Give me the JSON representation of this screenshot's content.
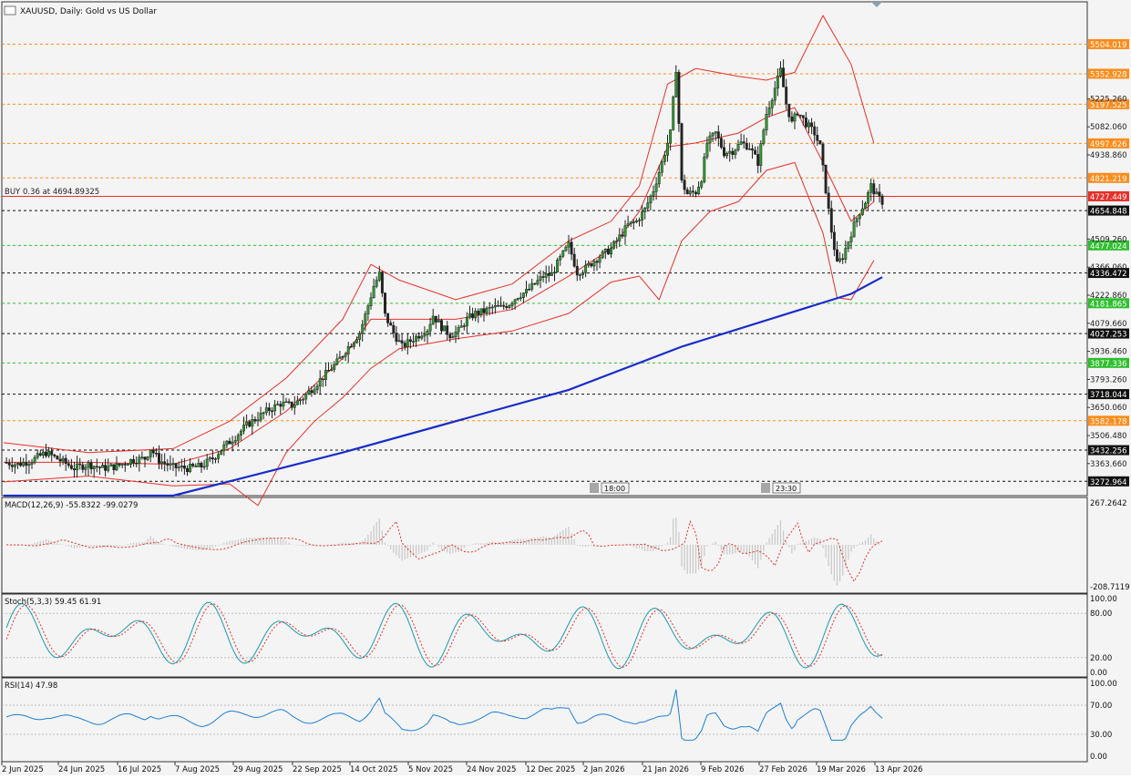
{
  "chart_data": [
    {
      "type": "candlestick",
      "title": "XAUUSD, Daily:  Gold vs US Dollar",
      "position_label": "BUY 0.36 at 4694.89325",
      "ylim": [
        3200,
        5720
      ],
      "y_ticks": [
        "3363.660",
        "3506.480",
        "3650.060",
        "3793.260",
        "3936.460",
        "4079.660",
        "4222.860",
        "4366.060",
        "4509.260",
        "4938.860",
        "5082.060",
        "5225.260"
      ],
      "grid": false,
      "x_ticks": [
        "2 Jun 2025",
        "24 Jun 2025",
        "16 Jul 2025",
        "7 Aug 2025",
        "29 Aug 2025",
        "22 Sep 2025",
        "14 Oct 2025",
        "5 Nov 2025",
        "24 Nov 2025",
        "12 Dec 2025",
        "2 Jan 2026",
        "21 Jan 2026",
        "9 Feb 2026",
        "27 Feb 2026",
        "19 Mar 2026",
        "13 Apr 2026"
      ],
      "price_lines": [
        {
          "value": 5504.019,
          "label": "5504.019",
          "color": "#ff8c1a",
          "style": "dash"
        },
        {
          "value": 5352.928,
          "label": "5352.928",
          "color": "#ff8c1a",
          "style": "dash"
        },
        {
          "value": 5197.525,
          "label": "5197.525",
          "color": "#ff8c1a",
          "style": "dash"
        },
        {
          "value": 4997.626,
          "label": "4997.626",
          "color": "#ff8c1a",
          "style": "dash"
        },
        {
          "value": 4821.219,
          "label": "4821.219",
          "color": "#ff8c1a",
          "style": "dash"
        },
        {
          "value": 4727.449,
          "label": "4727.449",
          "color": "#e8302a",
          "style": "solid"
        },
        {
          "value": 4654.848,
          "label": "4654.848",
          "color": "#111111",
          "style": "dash"
        },
        {
          "value": 4477.024,
          "label": "4477.024",
          "color": "#2fbf2f",
          "style": "dash"
        },
        {
          "value": 4336.472,
          "label": "4336.472",
          "color": "#111111",
          "style": "dash"
        },
        {
          "value": 4181.865,
          "label": "4181.865",
          "color": "#2fbf2f",
          "style": "dash"
        },
        {
          "value": 4027.253,
          "label": "4027.253",
          "color": "#111111",
          "style": "dash"
        },
        {
          "value": 3877.336,
          "label": "3877.336",
          "color": "#2fbf2f",
          "style": "dash"
        },
        {
          "value": 3718.044,
          "label": "3718.044",
          "color": "#111111",
          "style": "dash"
        },
        {
          "value": 3582.178,
          "label": "3582.178",
          "color": "#ff8c1a",
          "style": "dash"
        },
        {
          "value": 3432.256,
          "label": "3432.256",
          "color": "#111111",
          "style": "dash"
        },
        {
          "value": 3272.964,
          "label": "3272.964",
          "color": "#111111",
          "style": "dash"
        }
      ],
      "time_markers": [
        "18:00",
        "23:30"
      ],
      "close_path": [
        [
          0,
          3370
        ],
        [
          5,
          3360
        ],
        [
          10,
          3380
        ],
        [
          15,
          3420
        ],
        [
          20,
          3380
        ],
        [
          25,
          3340
        ],
        [
          30,
          3360
        ],
        [
          35,
          3340
        ],
        [
          40,
          3350
        ],
        [
          45,
          3380
        ],
        [
          50,
          3390
        ],
        [
          52,
          3440
        ],
        [
          55,
          3380
        ],
        [
          60,
          3345
        ],
        [
          65,
          3340
        ],
        [
          70,
          3350
        ],
        [
          74,
          3390
        ],
        [
          78,
          3450
        ],
        [
          82,
          3500
        ],
        [
          86,
          3560
        ],
        [
          90,
          3600
        ],
        [
          94,
          3640
        ],
        [
          98,
          3670
        ],
        [
          102,
          3660
        ],
        [
          106,
          3700
        ],
        [
          110,
          3760
        ],
        [
          114,
          3820
        ],
        [
          118,
          3880
        ],
        [
          122,
          3960
        ],
        [
          126,
          4030
        ],
        [
          128,
          4120
        ],
        [
          131,
          4270
        ],
        [
          133,
          4330
        ],
        [
          135,
          4120
        ],
        [
          138,
          4030
        ],
        [
          141,
          3960
        ],
        [
          144,
          3990
        ],
        [
          147,
          4020
        ],
        [
          150,
          4050
        ],
        [
          152,
          4120
        ],
        [
          155,
          4060
        ],
        [
          158,
          4020
        ],
        [
          161,
          4040
        ],
        [
          164,
          4100
        ],
        [
          167,
          4130
        ],
        [
          170,
          4140
        ],
        [
          173,
          4160
        ],
        [
          176,
          4160
        ],
        [
          179,
          4180
        ],
        [
          182,
          4220
        ],
        [
          185,
          4240
        ],
        [
          188,
          4280
        ],
        [
          191,
          4320
        ],
        [
          194,
          4330
        ],
        [
          197,
          4410
        ],
        [
          200,
          4480
        ],
        [
          203,
          4340
        ],
        [
          206,
          4360
        ],
        [
          209,
          4400
        ],
        [
          212,
          4430
        ],
        [
          215,
          4460
        ],
        [
          218,
          4520
        ],
        [
          221,
          4580
        ],
        [
          224,
          4600
        ],
        [
          227,
          4660
        ],
        [
          230,
          4760
        ],
        [
          233,
          4900
        ],
        [
          236,
          5050
        ],
        [
          238,
          5380
        ],
        [
          239,
          5100
        ],
        [
          240,
          4800
        ],
        [
          242,
          4740
        ],
        [
          245,
          4750
        ],
        [
          247,
          4820
        ],
        [
          249,
          5000
        ],
        [
          252,
          5050
        ],
        [
          255,
          4950
        ],
        [
          258,
          4960
        ],
        [
          261,
          5000
        ],
        [
          264,
          4980
        ],
        [
          267,
          4900
        ],
        [
          270,
          5150
        ],
        [
          273,
          5280
        ],
        [
          275,
          5370
        ],
        [
          277,
          5200
        ],
        [
          279,
          5100
        ],
        [
          281,
          5160
        ],
        [
          284,
          5100
        ],
        [
          287,
          5050
        ],
        [
          289,
          4980
        ],
        [
          291,
          4760
        ],
        [
          293,
          4550
        ],
        [
          295,
          4380
        ],
        [
          297,
          4420
        ],
        [
          299,
          4500
        ],
        [
          301,
          4580
        ],
        [
          303,
          4650
        ],
        [
          305,
          4700
        ],
        [
          307,
          4780
        ],
        [
          309,
          4730
        ],
        [
          311,
          4700
        ]
      ],
      "ma_line": [
        [
          0,
          2900
        ],
        [
          60,
          3170
        ],
        [
          120,
          3420
        ],
        [
          165,
          3600
        ],
        [
          200,
          3740
        ],
        [
          240,
          3960
        ],
        [
          280,
          4140
        ],
        [
          300,
          4230
        ],
        [
          311,
          4315
        ]
      ],
      "series": [
        {
          "name": "Bollinger upper",
          "values": [
            [
              0,
              3470
            ],
            [
              30,
              3420
            ],
            [
              60,
              3440
            ],
            [
              80,
              3580
            ],
            [
              100,
              3800
            ],
            [
              120,
              4100
            ],
            [
              130,
              4380
            ],
            [
              140,
              4300
            ],
            [
              160,
              4200
            ],
            [
              180,
              4280
            ],
            [
              200,
              4500
            ],
            [
              215,
              4600
            ],
            [
              225,
              4780
            ],
            [
              235,
              5300
            ],
            [
              245,
              5380
            ],
            [
              260,
              5340
            ],
            [
              270,
              5320
            ],
            [
              280,
              5360
            ],
            [
              290,
              5650
            ],
            [
              300,
              5400
            ],
            [
              308,
              5000
            ]
          ]
        },
        {
          "name": "Bollinger middle",
          "values": [
            [
              0,
              3370
            ],
            [
              30,
              3370
            ],
            [
              60,
              3360
            ],
            [
              80,
              3440
            ],
            [
              100,
              3630
            ],
            [
              120,
              3900
            ],
            [
              130,
              4100
            ],
            [
              140,
              4100
            ],
            [
              160,
              4100
            ],
            [
              180,
              4150
            ],
            [
              200,
              4320
            ],
            [
              215,
              4460
            ],
            [
              225,
              4650
            ],
            [
              235,
              4980
            ],
            [
              245,
              5000
            ],
            [
              260,
              5050
            ],
            [
              270,
              5130
            ],
            [
              280,
              5180
            ],
            [
              290,
              4900
            ],
            [
              300,
              4600
            ],
            [
              308,
              4700
            ]
          ]
        },
        {
          "name": "Bollinger lower",
          "values": [
            [
              0,
              3270
            ],
            [
              30,
              3300
            ],
            [
              60,
              3250
            ],
            [
              80,
              3260
            ],
            [
              90,
              3150
            ],
            [
              100,
              3420
            ],
            [
              110,
              3580
            ],
            [
              120,
              3700
            ],
            [
              130,
              3850
            ],
            [
              140,
              3950
            ],
            [
              160,
              4000
            ],
            [
              180,
              4040
            ],
            [
              200,
              4130
            ],
            [
              215,
              4290
            ],
            [
              225,
              4320
            ],
            [
              232,
              4200
            ],
            [
              240,
              4500
            ],
            [
              250,
              4650
            ],
            [
              260,
              4700
            ],
            [
              270,
              4860
            ],
            [
              280,
              4900
            ],
            [
              290,
              4540
            ],
            [
              295,
              4210
            ],
            [
              300,
              4200
            ],
            [
              308,
              4400
            ]
          ]
        }
      ]
    },
    {
      "type": "histogram-line",
      "title": "MACD(12,26,9) -55.8322 -99.0279",
      "ylim": [
        -208.7119,
        267.2642
      ],
      "y_ticks": [
        "267.2642",
        "-208.7119"
      ]
    },
    {
      "type": "line",
      "title": "Stoch(5,3,3) 59.45 61.91",
      "ylim": [
        0,
        100
      ],
      "y_ticks": [
        "100.00",
        "80.00",
        "20.00",
        "0.00"
      ]
    },
    {
      "type": "line",
      "title": "RSI(14) 47.98",
      "ylim": [
        0,
        100
      ],
      "y_ticks": [
        "100.00",
        "70.00",
        "30.00",
        "0.00"
      ]
    }
  ],
  "colors": {
    "bull": "#2e9e2e",
    "bear": "#222222",
    "bollinger": "#e8302a",
    "ma": "#1a2ccc",
    "macd_signal": "#e8302a",
    "macd_hist": "#c8c8c8",
    "stoch_main": "#1a9bb0",
    "stoch_signal": "#e8302a",
    "rsi": "#1e7fd6"
  }
}
